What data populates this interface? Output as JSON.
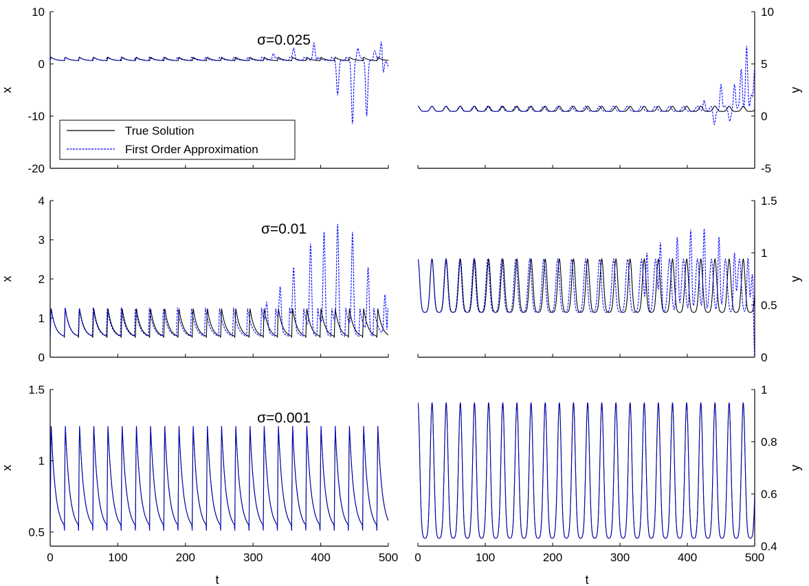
{
  "colors": {
    "true_solution": "#000000",
    "approximation": "#0000ff",
    "axes": "#000000",
    "background": "#ffffff"
  },
  "chart_data": [
    {
      "type": "line",
      "panel": "top-left",
      "annotation": "σ=0.025",
      "xlabel": "",
      "ylabel": "x",
      "xlim": [
        0,
        500
      ],
      "ylim": [
        -20,
        10
      ],
      "yticks": [
        10,
        0,
        -10,
        -20
      ],
      "ytick_labels": [
        "10",
        "0",
        "-10",
        "-20"
      ],
      "xticks": [
        0,
        100,
        200,
        300,
        400,
        500
      ],
      "xtick_labels": [],
      "legend": {
        "placement": "left",
        "entries": [
          "True Solution",
          "First Order Approximation"
        ]
      },
      "series": [
        {
          "name": "True Solution",
          "style": "solid",
          "period": 21,
          "base": 0.6,
          "amplitude": 0.7,
          "shape": "sawtooth",
          "t_range": [
            0,
            500
          ]
        },
        {
          "name": "First Order Approximation",
          "style": "dashed",
          "t_range": [
            0,
            500
          ],
          "spikes": [
            [
              330,
              2
            ],
            [
              360,
              3
            ],
            [
              390,
              4
            ],
            [
              425,
              -6
            ],
            [
              447,
              -11.5
            ],
            [
              455,
              3
            ],
            [
              468,
              -10
            ],
            [
              480,
              2.5
            ],
            [
              490,
              5.5
            ],
            [
              492,
              -3
            ],
            [
              500,
              -0.5
            ]
          ]
        }
      ]
    },
    {
      "type": "line",
      "panel": "top-right",
      "xlabel": "",
      "ylabel": "y",
      "xlim": [
        0,
        500
      ],
      "ylim": [
        -5,
        10
      ],
      "yticks": [
        10,
        5,
        0,
        -5
      ],
      "ytick_labels": [
        "10",
        "5",
        "0",
        "-5"
      ],
      "xticks": [
        0,
        100,
        200,
        300,
        400,
        500
      ],
      "xtick_labels": [],
      "series": [
        {
          "name": "True Solution",
          "style": "solid",
          "period": 21,
          "base": 0.45,
          "amplitude": 0.5,
          "shape": "spike",
          "t_range": [
            0,
            500
          ]
        },
        {
          "name": "First Order Approximation",
          "style": "dashed",
          "t_range": [
            0,
            500
          ],
          "spikes": [
            [
              425,
              1.5
            ],
            [
              440,
              -0.8
            ],
            [
              450,
              3.0
            ],
            [
              463,
              -0.5
            ],
            [
              470,
              3.0
            ],
            [
              480,
              4.5
            ],
            [
              488,
              6.7
            ],
            [
              495,
              2.0
            ],
            [
              500,
              4.5
            ]
          ]
        }
      ]
    },
    {
      "type": "line",
      "panel": "middle-left",
      "annotation": "σ=0.01",
      "xlabel": "",
      "ylabel": "x",
      "xlim": [
        0,
        500
      ],
      "ylim": [
        0,
        4
      ],
      "yticks": [
        4,
        3,
        2,
        1,
        0
      ],
      "ytick_labels": [
        "4",
        "3",
        "2",
        "1",
        "0"
      ],
      "xticks": [
        0,
        100,
        200,
        300,
        400,
        500
      ],
      "xtick_labels": [],
      "series": [
        {
          "name": "True Solution",
          "style": "solid",
          "period": 21,
          "base": 0.5,
          "amplitude": 0.77,
          "shape": "sawtooth",
          "t_range": [
            0,
            500
          ]
        },
        {
          "name": "First Order Approximation",
          "style": "dashed",
          "t_range": [
            0,
            500
          ],
          "spikes": [
            [
              320,
              1.4
            ],
            [
              340,
              1.8
            ],
            [
              360,
              2.3
            ],
            [
              385,
              2.9
            ],
            [
              405,
              3.2
            ],
            [
              425,
              3.4
            ],
            [
              447,
              3.2
            ],
            [
              470,
              2.3
            ],
            [
              495,
              1.6
            ]
          ]
        }
      ]
    },
    {
      "type": "line",
      "panel": "middle-right",
      "xlabel": "",
      "ylabel": "y",
      "xlim": [
        0,
        500
      ],
      "ylim": [
        0,
        1.5
      ],
      "yticks": [
        1.5,
        1,
        0.5,
        0
      ],
      "ytick_labels": [
        "1.5",
        "1",
        "0.5",
        "0"
      ],
      "xticks": [
        0,
        100,
        200,
        300,
        400,
        500
      ],
      "xtick_labels": [],
      "series": [
        {
          "name": "True Solution",
          "style": "solid",
          "period": 21,
          "base": 0.43,
          "amplitude": 0.51,
          "shape": "spike",
          "t_range": [
            0,
            500
          ]
        },
        {
          "name": "First Order Approximation",
          "style": "dashed",
          "t_range": [
            0,
            500
          ],
          "spikes": [
            [
              340,
              1.0
            ],
            [
              360,
              1.1
            ],
            [
              385,
              1.15
            ],
            [
              405,
              1.22
            ],
            [
              425,
              1.23
            ],
            [
              447,
              1.15
            ],
            [
              470,
              1.0
            ],
            [
              490,
              0.95
            ],
            [
              500,
              0.0
            ]
          ]
        }
      ]
    },
    {
      "type": "line",
      "panel": "bottom-left",
      "annotation": "σ=0.001",
      "xlabel": "t",
      "ylabel": "x",
      "xlim": [
        0,
        500
      ],
      "ylim": [
        0.4,
        1.5
      ],
      "yticks": [
        1.5,
        1,
        0.5
      ],
      "ytick_labels": [
        "1.5",
        "1",
        "0.5"
      ],
      "xticks": [
        0,
        100,
        200,
        300,
        400,
        500
      ],
      "xtick_labels": [
        "0",
        "100",
        "200",
        "300",
        "400",
        "500"
      ],
      "series": [
        {
          "name": "True Solution",
          "style": "solid",
          "period": 21,
          "base": 0.51,
          "amplitude": 0.76,
          "shape": "sawtooth",
          "t_range": [
            0,
            500
          ]
        },
        {
          "name": "First Order Approximation",
          "style": "dashed",
          "period": 21,
          "base": 0.51,
          "amplitude": 0.76,
          "shape": "sawtooth",
          "t_range": [
            0,
            500
          ]
        }
      ]
    },
    {
      "type": "line",
      "panel": "bottom-right",
      "xlabel": "t",
      "ylabel": "y",
      "xlim": [
        0,
        500
      ],
      "ylim": [
        0.4,
        1
      ],
      "yticks": [
        1,
        0.8,
        0.6,
        0.4
      ],
      "ytick_labels": [
        "1",
        "0.8",
        "0.6",
        "0.4"
      ],
      "xticks": [
        0,
        100,
        200,
        300,
        400,
        500
      ],
      "xtick_labels": [
        "0",
        "100",
        "200",
        "300",
        "400",
        "500"
      ],
      "series": [
        {
          "name": "True Solution",
          "style": "solid",
          "period": 21,
          "base": 0.43,
          "amplitude": 0.52,
          "shape": "spike",
          "t_range": [
            0,
            500
          ]
        },
        {
          "name": "First Order Approximation",
          "style": "dashed",
          "period": 21,
          "base": 0.43,
          "amplitude": 0.52,
          "shape": "spike",
          "t_range": [
            0,
            500
          ]
        }
      ]
    }
  ]
}
